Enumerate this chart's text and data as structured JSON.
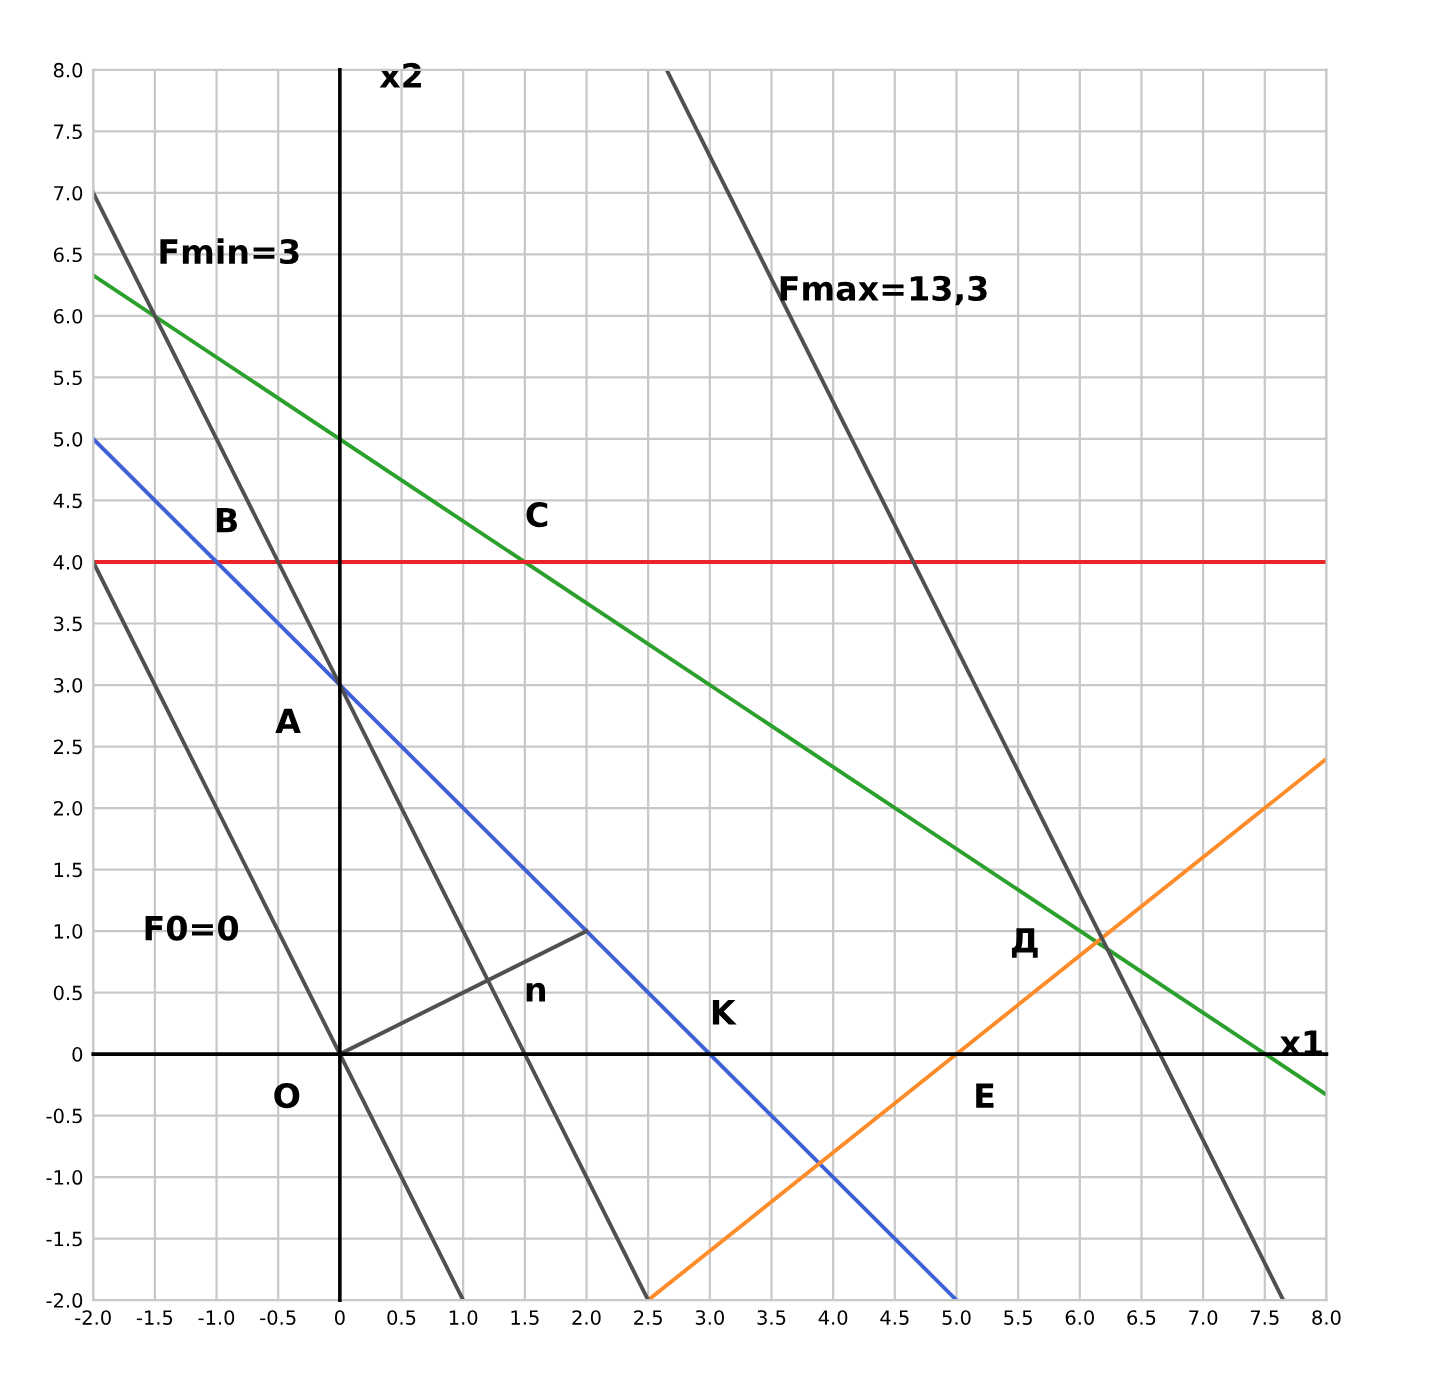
{
  "chart_data": {
    "type": "line",
    "xlabel": "x1",
    "ylabel": "x2",
    "grid": true,
    "legend": false,
    "marker": "none",
    "line_style": "solid",
    "xlim": [
      -2,
      8
    ],
    "ylim": [
      -2,
      8
    ],
    "xticks": [
      {
        "value": -2,
        "label": "-2.0"
      },
      {
        "value": -1.5,
        "label": "-1.5"
      },
      {
        "value": -1,
        "label": "-1.0"
      },
      {
        "value": -0.5,
        "label": "-0.5"
      },
      {
        "value": 0,
        "label": "0"
      },
      {
        "value": 0.5,
        "label": "0.5"
      },
      {
        "value": 1,
        "label": "1.0"
      },
      {
        "value": 1.5,
        "label": "1.5"
      },
      {
        "value": 2,
        "label": "2.0"
      },
      {
        "value": 2.5,
        "label": "2.5"
      },
      {
        "value": 3,
        "label": "3.0"
      },
      {
        "value": 3.5,
        "label": "3.5"
      },
      {
        "value": 4,
        "label": "4.0"
      },
      {
        "value": 4.5,
        "label": "4.5"
      },
      {
        "value": 5,
        "label": "5.0"
      },
      {
        "value": 5.5,
        "label": "5.5"
      },
      {
        "value": 6,
        "label": "6.0"
      },
      {
        "value": 6.5,
        "label": "6.5"
      },
      {
        "value": 7,
        "label": "7.0"
      },
      {
        "value": 7.5,
        "label": "7.5"
      },
      {
        "value": 8,
        "label": "8.0"
      }
    ],
    "yticks": [
      {
        "value": -2,
        "label": "-2.0"
      },
      {
        "value": -1.5,
        "label": "-1.5"
      },
      {
        "value": -1,
        "label": "-1.0"
      },
      {
        "value": -0.5,
        "label": "-0.5"
      },
      {
        "value": 0,
        "label": "0"
      },
      {
        "value": 0.5,
        "label": "0.5"
      },
      {
        "value": 1,
        "label": "1.0"
      },
      {
        "value": 1.5,
        "label": "1.5"
      },
      {
        "value": 2,
        "label": "2.0"
      },
      {
        "value": 2.5,
        "label": "2.5"
      },
      {
        "value": 3,
        "label": "3.0"
      },
      {
        "value": 3.5,
        "label": "3.5"
      },
      {
        "value": 4,
        "label": "4.0"
      },
      {
        "value": 4.5,
        "label": "4.5"
      },
      {
        "value": 5,
        "label": "5.0"
      },
      {
        "value": 5.5,
        "label": "5.5"
      },
      {
        "value": 6,
        "label": "6.0"
      },
      {
        "value": 6.5,
        "label": "6.5"
      },
      {
        "value": 7,
        "label": "7.0"
      },
      {
        "value": 7.5,
        "label": "7.5"
      },
      {
        "value": 8,
        "label": "8.0"
      }
    ],
    "series": [
      {
        "color": "#2ca02c",
        "x": [
          -2,
          8
        ],
        "values": [
          6.33,
          -0.33
        ]
      },
      {
        "color": "#e8262a",
        "x": [
          -2,
          8
        ],
        "values": [
          4,
          4
        ]
      },
      {
        "color": "#4060d8",
        "x": [
          -2,
          5
        ],
        "values": [
          5,
          -2
        ]
      },
      {
        "color": "#ff8c2a",
        "x": [
          2.5,
          8
        ],
        "values": [
          -2,
          2.4
        ]
      },
      {
        "color": "#505050",
        "x": [
          -2,
          1
        ],
        "values": [
          4,
          -2
        ]
      },
      {
        "color": "#505050",
        "x": [
          -2,
          2.5
        ],
        "values": [
          7,
          -2
        ]
      },
      {
        "color": "#505050",
        "x": [
          2.65,
          7.65
        ],
        "values": [
          8,
          -2
        ]
      },
      {
        "color": "#505050",
        "x": [
          0,
          2
        ],
        "values": [
          0,
          1
        ]
      }
    ],
    "annotations": [
      {
        "text": "Fmin=3",
        "x": -1.75,
        "y": 6.5
      },
      {
        "text": "Fmax=13,3",
        "x": 3.55,
        "y": 6.2
      },
      "F0=0",
      {
        "text": "B",
        "x": -0.5,
        "y": 4
      },
      {
        "text": "C",
        "x": 1.5,
        "y": 4
      },
      {
        "text": "A",
        "x": 0,
        "y": 3
      },
      {
        "text": "n",
        "x": 2,
        "y": 1
      },
      {
        "text": "K",
        "x": 3,
        "y": 0
      },
      {
        "text": "O",
        "x": 0,
        "y": 0
      },
      {
        "text": "E",
        "x": 5,
        "y": 0
      },
      {
        "text": "Д",
        "x": 6.17,
        "y": 0.9
      }
    ]
  }
}
